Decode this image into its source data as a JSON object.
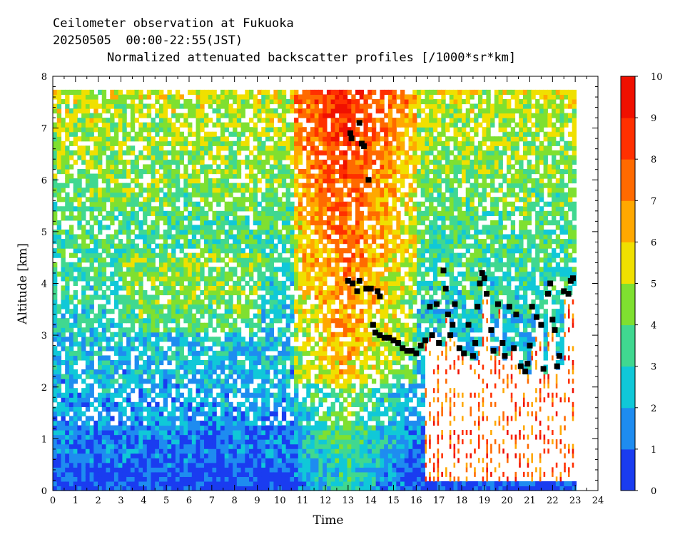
{
  "header": {
    "line1": "Ceilometer observation at Fukuoka",
    "line2": "20250505  00:00-22:55(JST)",
    "line3": "Normalized attenuated backscatter profiles [/1000*sr*km]"
  },
  "chart_data": {
    "type": "heatmap",
    "title": "Normalized attenuated backscatter profiles [/1000*sr*km]",
    "xlabel": "Time",
    "ylabel": "Altitude [km]",
    "xlim": [
      0,
      24
    ],
    "ylim": [
      0,
      8
    ],
    "x_ticks": [
      "0",
      "1",
      "2",
      "3",
      "4",
      "5",
      "6",
      "7",
      "8",
      "9",
      "10",
      "11",
      "12",
      "13",
      "14",
      "15",
      "16",
      "17",
      "18",
      "19",
      "20",
      "21",
      "22",
      "23",
      "24"
    ],
    "y_ticks": [
      "0",
      "1",
      "2",
      "3",
      "4",
      "5",
      "6",
      "7",
      "8"
    ],
    "colorbar": {
      "range": [
        0,
        10
      ],
      "ticks": [
        "0",
        "1",
        "2",
        "3",
        "4",
        "5",
        "6",
        "7",
        "8",
        "9",
        "10"
      ],
      "colors": [
        "#1a3cf0",
        "#1e8cf0",
        "#10c8d8",
        "#40d890",
        "#7fe030",
        "#f0e000",
        "#ffa800",
        "#ff6a00",
        "#ff3000",
        "#f01000"
      ]
    },
    "data_end_time": 22.92,
    "data_top_altitude": 7.65,
    "cloud_base_heights": [
      {
        "t": 13.1,
        "h": 6.9
      },
      {
        "t": 13.15,
        "h": 6.8
      },
      {
        "t": 13.5,
        "h": 7.1
      },
      {
        "t": 13.6,
        "h": 6.7
      },
      {
        "t": 13.7,
        "h": 6.65
      },
      {
        "t": 13.9,
        "h": 6.0
      },
      {
        "t": 13.0,
        "h": 4.05
      },
      {
        "t": 13.2,
        "h": 4.0
      },
      {
        "t": 13.4,
        "h": 3.85
      },
      {
        "t": 13.5,
        "h": 4.05
      },
      {
        "t": 13.8,
        "h": 3.9
      },
      {
        "t": 14.0,
        "h": 3.9
      },
      {
        "t": 14.3,
        "h": 3.85
      },
      {
        "t": 14.4,
        "h": 3.75
      },
      {
        "t": 14.1,
        "h": 3.2
      },
      {
        "t": 14.2,
        "h": 3.05
      },
      {
        "t": 14.4,
        "h": 3.0
      },
      {
        "t": 14.6,
        "h": 2.95
      },
      {
        "t": 14.8,
        "h": 2.95
      },
      {
        "t": 15.0,
        "h": 2.9
      },
      {
        "t": 15.2,
        "h": 2.85
      },
      {
        "t": 15.4,
        "h": 2.75
      },
      {
        "t": 15.6,
        "h": 2.7
      },
      {
        "t": 15.8,
        "h": 2.7
      },
      {
        "t": 16.0,
        "h": 2.65
      },
      {
        "t": 16.2,
        "h": 2.8
      },
      {
        "t": 16.4,
        "h": 2.9
      },
      {
        "t": 16.6,
        "h": 3.55
      },
      {
        "t": 16.7,
        "h": 3.0
      },
      {
        "t": 16.9,
        "h": 3.6
      },
      {
        "t": 17.0,
        "h": 2.85
      },
      {
        "t": 17.2,
        "h": 4.25
      },
      {
        "t": 17.3,
        "h": 3.9
      },
      {
        "t": 17.4,
        "h": 3.4
      },
      {
        "t": 17.5,
        "h": 3.0
      },
      {
        "t": 17.6,
        "h": 3.2
      },
      {
        "t": 17.7,
        "h": 3.6
      },
      {
        "t": 17.9,
        "h": 2.75
      },
      {
        "t": 18.1,
        "h": 2.65
      },
      {
        "t": 18.3,
        "h": 3.2
      },
      {
        "t": 18.5,
        "h": 2.6
      },
      {
        "t": 18.6,
        "h": 2.85
      },
      {
        "t": 18.7,
        "h": 3.55
      },
      {
        "t": 18.8,
        "h": 4.0
      },
      {
        "t": 18.9,
        "h": 4.2
      },
      {
        "t": 19.0,
        "h": 4.1
      },
      {
        "t": 19.1,
        "h": 3.8
      },
      {
        "t": 19.3,
        "h": 3.1
      },
      {
        "t": 19.4,
        "h": 2.7
      },
      {
        "t": 19.6,
        "h": 3.6
      },
      {
        "t": 19.8,
        "h": 2.85
      },
      {
        "t": 19.9,
        "h": 2.6
      },
      {
        "t": 20.1,
        "h": 3.55
      },
      {
        "t": 20.3,
        "h": 2.75
      },
      {
        "t": 20.4,
        "h": 3.4
      },
      {
        "t": 20.6,
        "h": 2.4
      },
      {
        "t": 20.8,
        "h": 2.3
      },
      {
        "t": 20.9,
        "h": 2.45
      },
      {
        "t": 21.0,
        "h": 2.8
      },
      {
        "t": 21.1,
        "h": 3.55
      },
      {
        "t": 21.3,
        "h": 3.35
      },
      {
        "t": 21.5,
        "h": 3.2
      },
      {
        "t": 21.6,
        "h": 2.35
      },
      {
        "t": 21.8,
        "h": 3.8
      },
      {
        "t": 21.9,
        "h": 4.0
      },
      {
        "t": 22.0,
        "h": 3.3
      },
      {
        "t": 22.1,
        "h": 3.1
      },
      {
        "t": 22.2,
        "h": 2.4
      },
      {
        "t": 22.3,
        "h": 2.6
      },
      {
        "t": 22.5,
        "h": 3.85
      },
      {
        "t": 22.7,
        "h": 3.8
      },
      {
        "t": 22.8,
        "h": 4.05
      },
      {
        "t": 22.9,
        "h": 4.1
      }
    ]
  }
}
